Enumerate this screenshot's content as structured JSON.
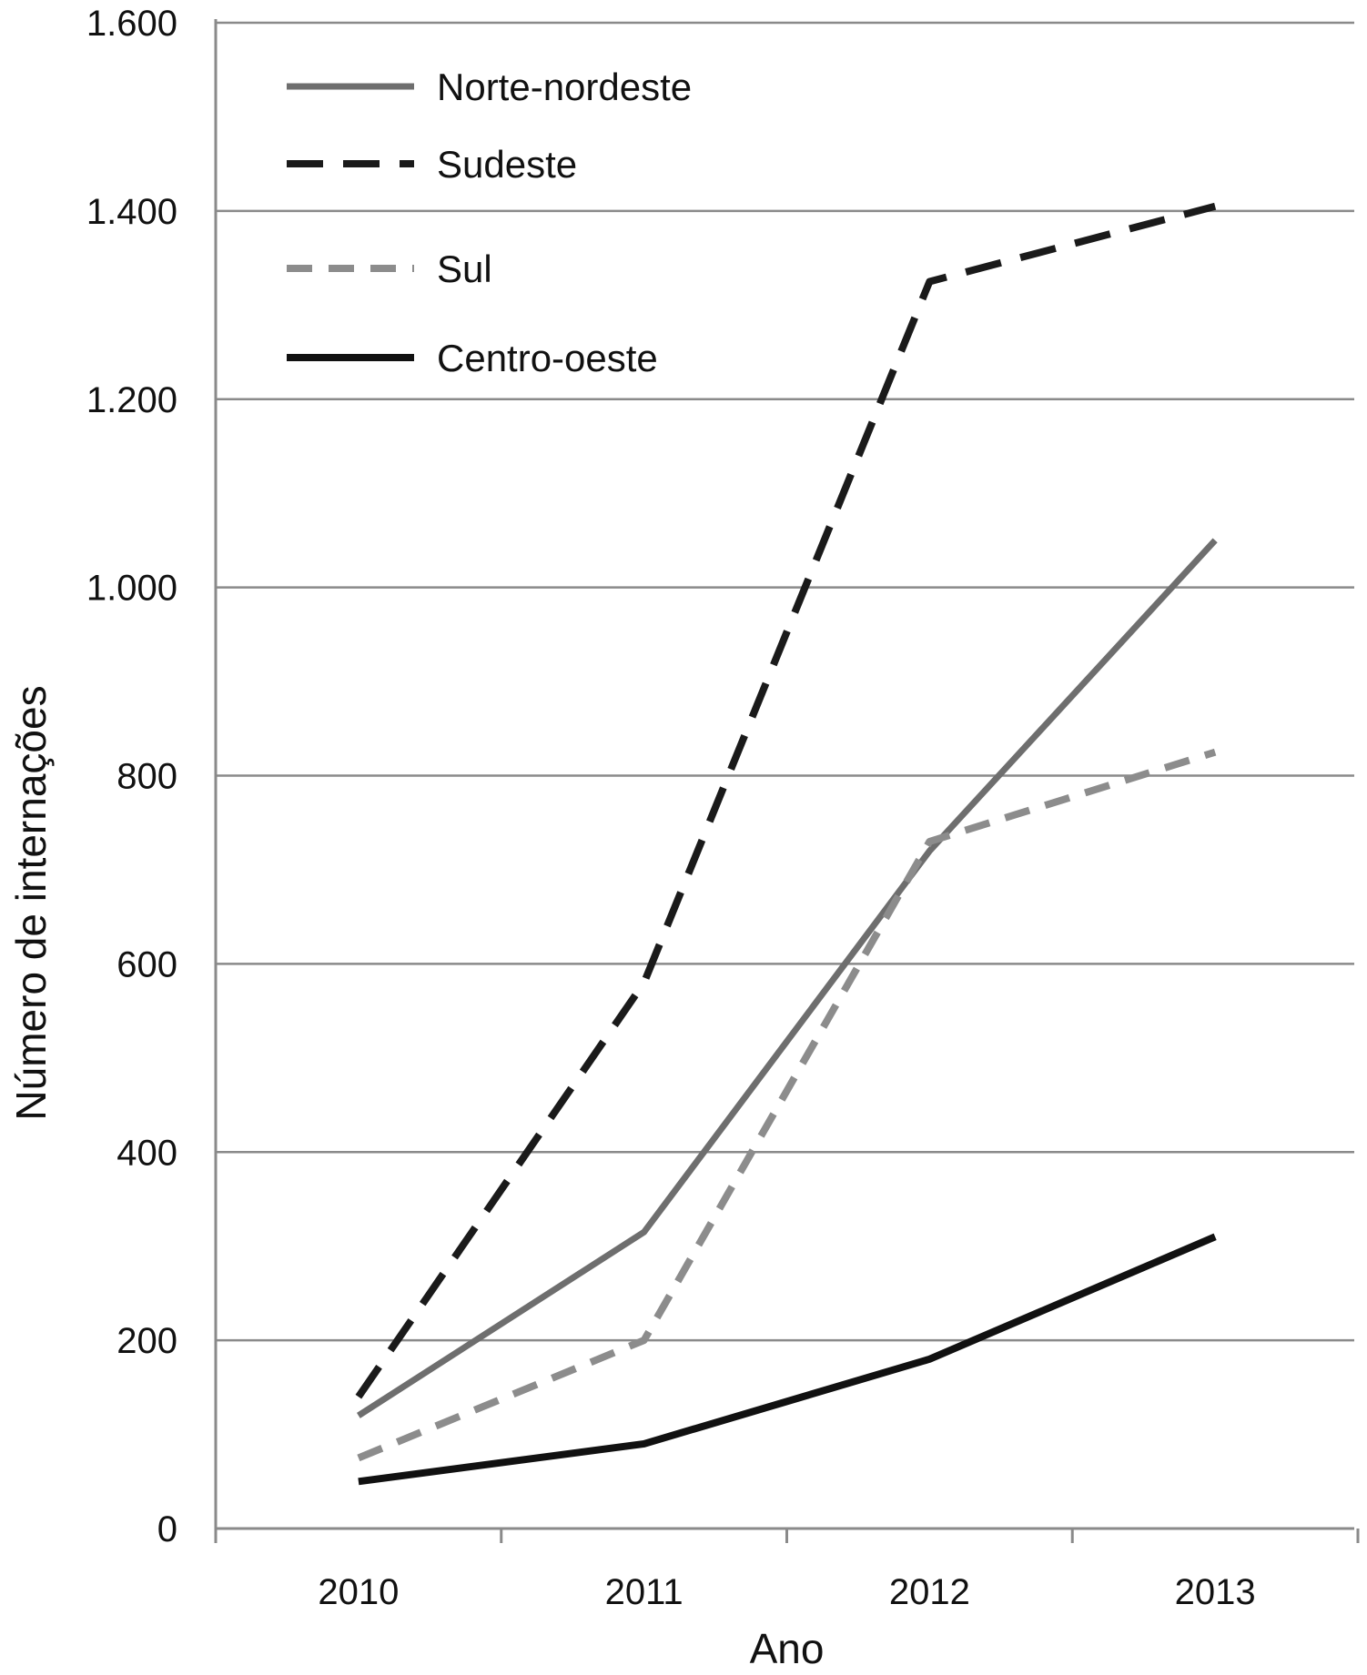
{
  "chart_data": {
    "type": "line",
    "title": "",
    "xlabel": "Ano",
    "ylabel": "Número de internações",
    "categories": [
      "2010",
      "2011",
      "2012",
      "2013"
    ],
    "ylim": [
      0,
      1600
    ],
    "yticks": [
      0,
      200,
      400,
      600,
      800,
      1000,
      1200,
      1400,
      1600
    ],
    "ytick_labels": [
      "0",
      "200",
      "400",
      "600",
      "800",
      "1.000",
      "1.200",
      "1.400",
      "1.600"
    ],
    "grid": "horizontal",
    "legend_position": "top-left",
    "series": [
      {
        "name": "Norte-nordeste",
        "values": [
          120,
          315,
          720,
          1050
        ],
        "color": "#6e6e6e",
        "style": "solid"
      },
      {
        "name": "Sudeste",
        "values": [
          140,
          580,
          1325,
          1405
        ],
        "color": "#1a1a1a",
        "style": "dashed"
      },
      {
        "name": "Sul",
        "values": [
          75,
          200,
          730,
          825
        ],
        "color": "#8c8c8c",
        "style": "dashed"
      },
      {
        "name": "Centro-oeste",
        "values": [
          50,
          90,
          180,
          310
        ],
        "color": "#111111",
        "style": "solid"
      }
    ]
  }
}
